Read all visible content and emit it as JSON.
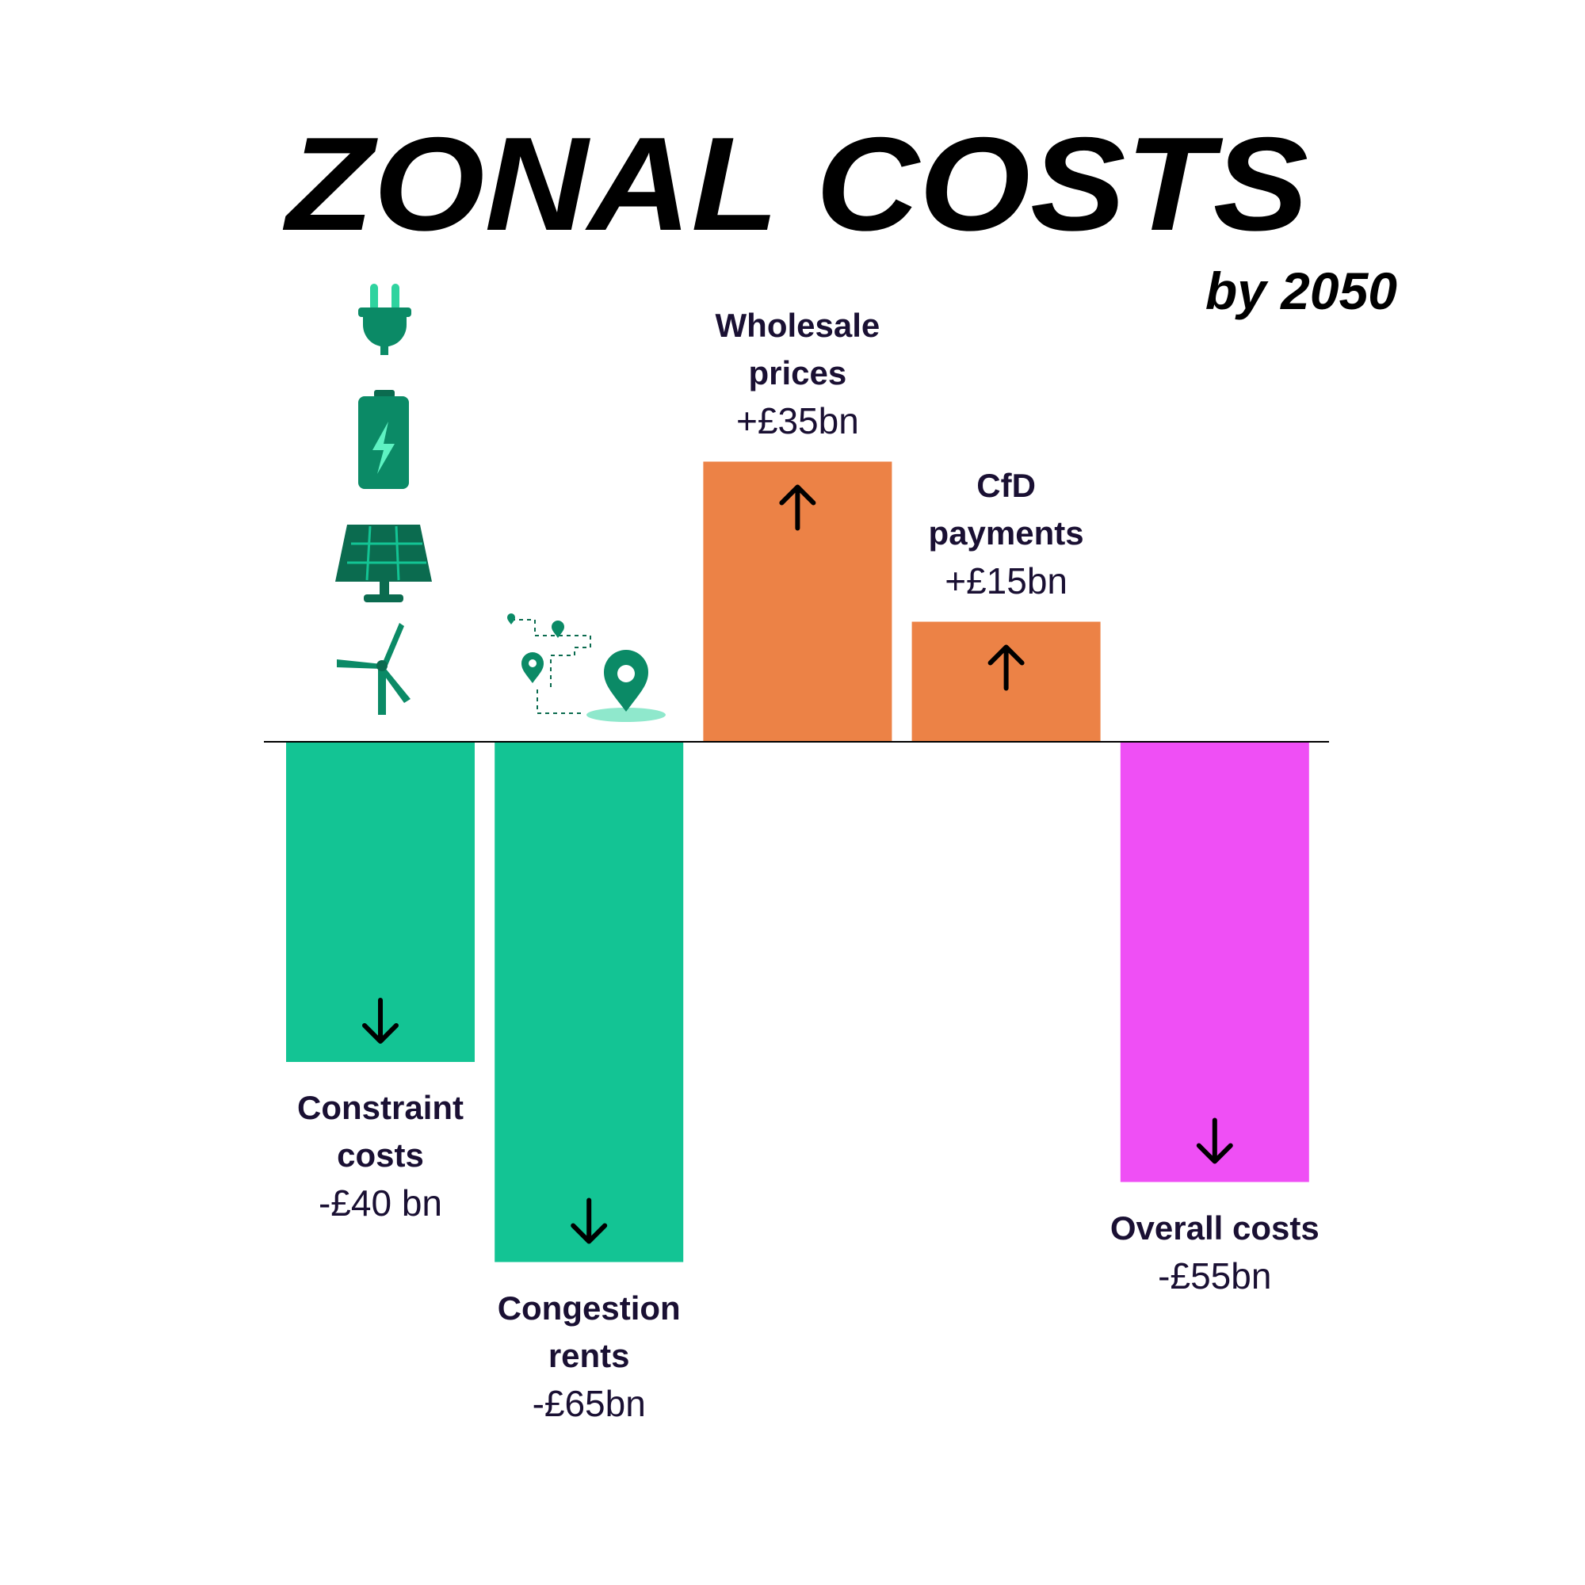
{
  "chart_data": {
    "type": "bar",
    "title": "ZONAL COSTS",
    "subtitle": "by 2050",
    "categories": [
      "Constraint costs",
      "Congestion rents",
      "Wholesale prices",
      "CfD payments",
      "Overall costs"
    ],
    "values": [
      -40,
      -65,
      35,
      15,
      -55
    ],
    "value_labels": [
      "-£40 bn",
      "-£65bn",
      "+£35bn",
      "+£15bn",
      "-£55bn"
    ],
    "colors": [
      "#13c494",
      "#13c494",
      "#ec8246",
      "#ec8246",
      "#ef4ff5"
    ],
    "ylim": [
      -70,
      50
    ]
  }
}
